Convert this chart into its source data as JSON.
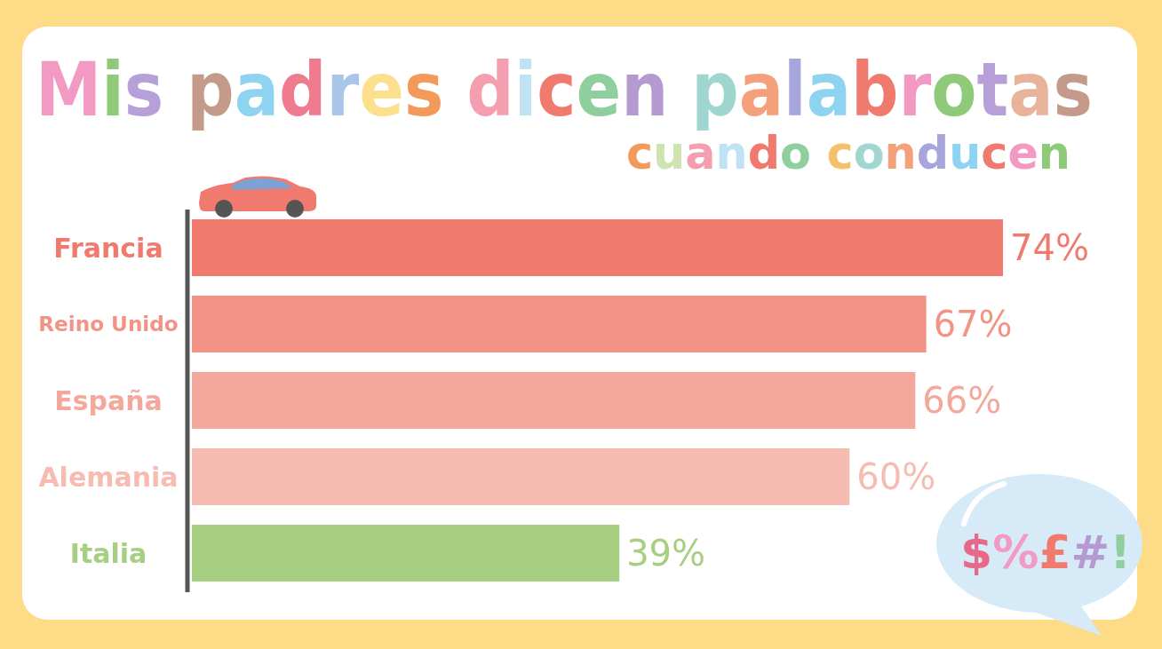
{
  "chart_data": {
    "type": "bar",
    "orientation": "horizontal",
    "title": "Mis padres dicen palabrotas",
    "subtitle": "cuando conducen",
    "categories": [
      "Francia",
      "Reino Unido",
      "España",
      "Alemania",
      "Italia"
    ],
    "values": [
      74,
      67,
      66,
      60,
      39
    ],
    "colors": [
      "#f07a6e",
      "#f29385",
      "#f4a89c",
      "#f6bcb2",
      "#a6cf82"
    ],
    "value_labels": [
      "74%",
      "67%",
      "66%",
      "60%",
      "39%"
    ],
    "annotations": [
      "$%£#!"
    ]
  }
}
